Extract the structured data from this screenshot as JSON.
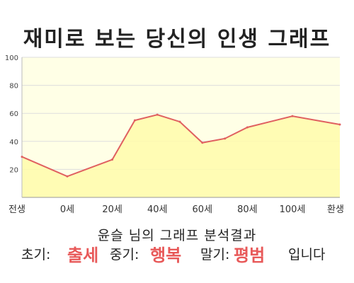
{
  "title": "재미로 보는 당신의 인생 그래프",
  "chart_data": {
    "type": "area",
    "x_tick_labels": [
      "전생",
      "0세",
      "20세",
      "40세",
      "60세",
      "80세",
      "100세",
      "환생"
    ],
    "y_ticks": [
      20,
      40,
      60,
      80,
      100
    ],
    "ylim": [
      0,
      100
    ],
    "grid": true,
    "points": [
      {
        "x": "전생",
        "y": 29
      },
      {
        "x": "0세",
        "y": 15
      },
      {
        "x": "20세",
        "y": 27
      },
      {
        "x": "30세",
        "y": 55
      },
      {
        "x": "40세",
        "y": 59
      },
      {
        "x": "50세",
        "y": 54
      },
      {
        "x": "60세",
        "y": 39
      },
      {
        "x": "70세",
        "y": 42
      },
      {
        "x": "80세",
        "y": 50
      },
      {
        "x": "100세",
        "y": 58
      },
      {
        "x": "환생",
        "y": 52
      }
    ],
    "colors": {
      "plot_bg": "#ffffe6",
      "line": "#e06060",
      "fill": "#fffcaa"
    }
  },
  "summary": {
    "title": "윤슬 님의 그래프 분석결과",
    "early_label": "초기:",
    "early_value": "출세",
    "mid_label": "중기:",
    "mid_value": "행복",
    "late_label": "말기:",
    "late_value": "평범",
    "ending": "입니다"
  }
}
